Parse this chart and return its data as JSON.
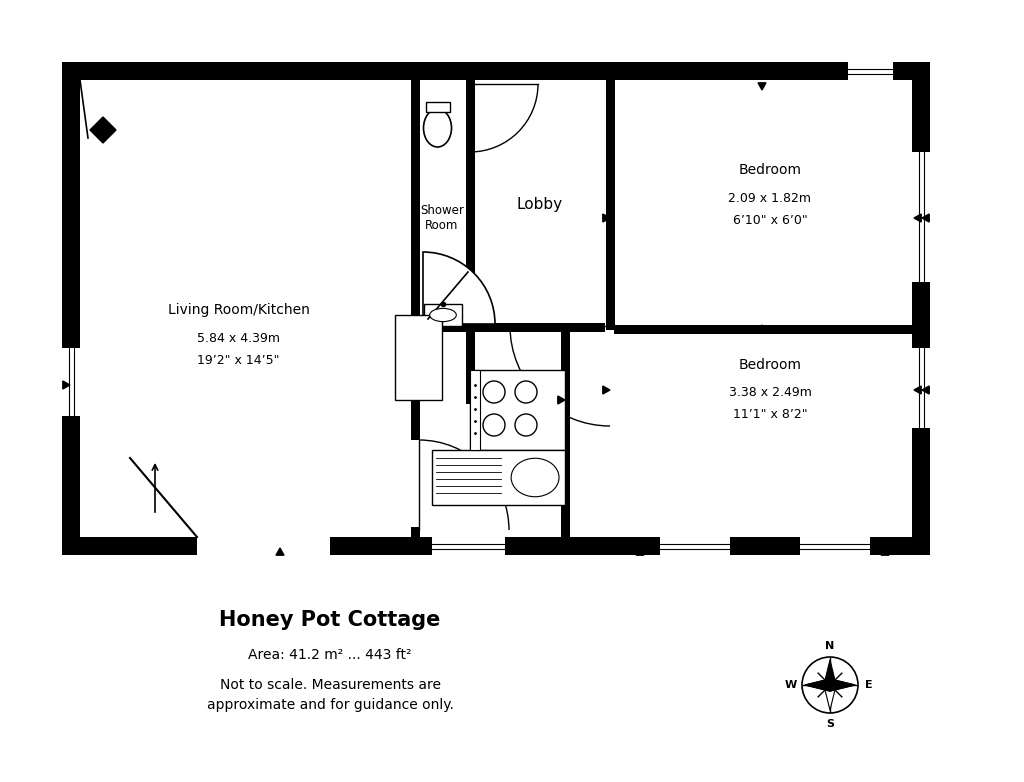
{
  "title": "Honey Pot Cottage",
  "area_text": "Area: 41.2 m² ... 443 ft²",
  "disclaimer": "Not to scale. Measurements are\napproximate and for guidance only.",
  "bg_color": "#ffffff",
  "rooms": {
    "living_kitchen": {
      "label": "Living Room/Kitchen",
      "dim1": "5.84 x 4.39m",
      "dim2": "19’2\" x 14’5\""
    },
    "shower": {
      "label": "Shower\nRoom"
    },
    "lobby": {
      "label": "Lobby"
    },
    "bedroom1": {
      "label": "Bedroom",
      "dim1": "2.09 x 1.82m",
      "dim2": "6’10\" x 6’0\""
    },
    "bedroom2": {
      "label": "Bedroom",
      "dim1": "3.38 x 2.49m",
      "dim2": "11’1\" x 8’2\""
    }
  }
}
